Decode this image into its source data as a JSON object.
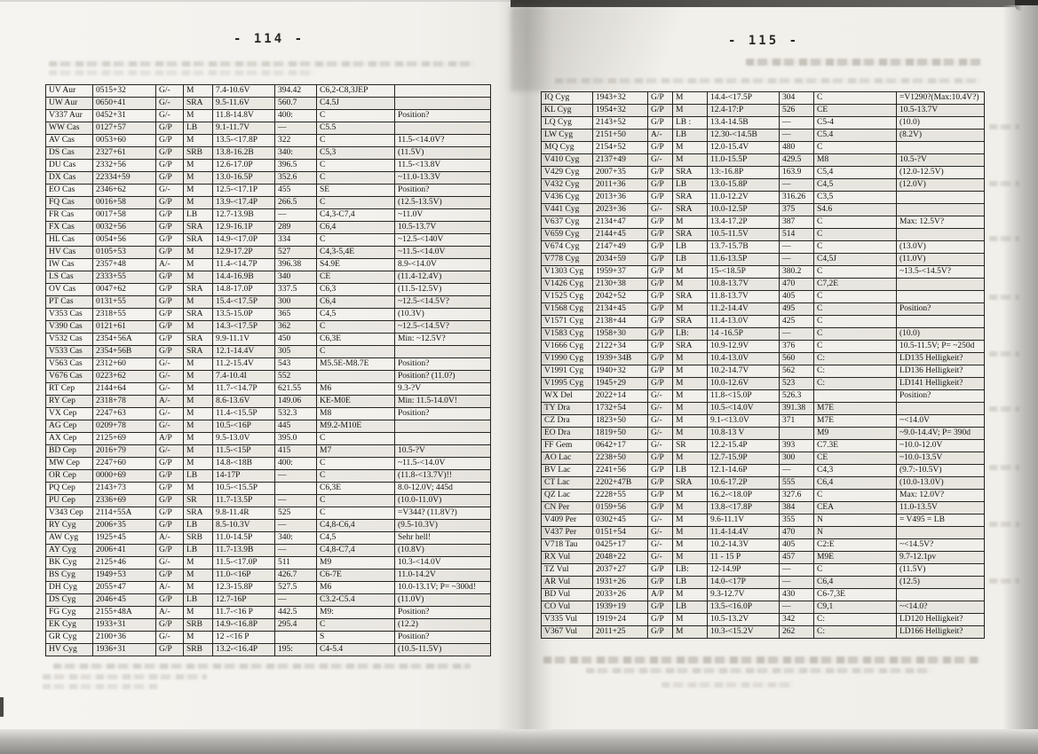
{
  "document": {
    "left_page": {
      "page_number": "- 114 -",
      "table": {
        "rows": [
          [
            "UV Aur",
            "0515+32",
            "G/-",
            "M",
            "7.4-10.6V",
            "394.42",
            "C6,2-C8,3JEP",
            ""
          ],
          [
            "UW Aur",
            "0650+41",
            "G/-",
            "SRA",
            "9.5-11.6V",
            "560.7",
            "C4.5J",
            ""
          ],
          [
            "V337 Aur",
            "0452+31",
            "G/-",
            "M",
            "11.8-14.8V",
            "400:",
            "C",
            "Position?"
          ],
          [
            "WW Cas",
            "0127+57",
            "G/P",
            "LB",
            "9.1-11.7V",
            "—",
            "C5.5",
            ""
          ],
          [
            "AV Cas",
            "0053+60",
            "G/P",
            "M",
            "13.5-<17.8P",
            "322",
            "C",
            "11.5-<14.0V?"
          ],
          [
            "DS Cas",
            "2327+61",
            "G/P",
            "SRB",
            "13.8-16.2B",
            "340:",
            "C5,3",
            "(11.5V)"
          ],
          [
            "DU Cas",
            "2332+56",
            "G/P",
            "M",
            "12.6-17.0P",
            "396.5",
            "C",
            "11.5-<13.8V"
          ],
          [
            "DX Cas",
            "22334+59",
            "G/P",
            "M",
            "13.0-16.5P",
            "352.6",
            "C",
            "~11.0-13.3V"
          ],
          [
            "EO Cas",
            "2346+62",
            "G/-",
            "M",
            "12.5-<17.1P",
            "455",
            "SE",
            "Position?"
          ],
          [
            "FQ Cas",
            "0016+58",
            "G/P",
            "M",
            "13.9-<17.4P",
            "266.5",
            "C",
            "(12.5-13.5V)"
          ],
          [
            "FR Cas",
            "0017+58",
            "G/P",
            "LB",
            "12.7-13.9B",
            "—",
            "C4,3-C7,4",
            "~11.0V"
          ],
          [
            "FX Cas",
            "0032+56",
            "G/P",
            "SRA",
            "12.9-16.1P",
            "289",
            "C6,4",
            "10.5-13.7V"
          ],
          [
            "HL Cas",
            "0054+56",
            "G/P",
            "SRA",
            "14.9-<17.0P",
            "334",
            "C",
            "~12.5-<140V"
          ],
          [
            "HV Cas",
            "0105+53",
            "G/P",
            "M",
            "12.9-17.2P",
            "527",
            "C4,3-5,4E",
            "~11.5-<14.0V"
          ],
          [
            "IW Cas",
            "2357+48",
            "A/-",
            "M",
            "11.4-<14.7P",
            "396.38",
            "S4.9E",
            "8.9-<14.0V"
          ],
          [
            "LS Cas",
            "2333+55",
            "G/P",
            "M",
            "14.4-16.9B",
            "340",
            "CE",
            "(11.4-12.4V)"
          ],
          [
            "OV Cas",
            "0047+62",
            "G/P",
            "SRA",
            "14.8-17.0P",
            "337.5",
            "C6,3",
            "(11.5-12.5V)"
          ],
          [
            "PT Cas",
            "0131+55",
            "G/P",
            "M",
            "15.4-<17.5P",
            "300",
            "C6,4",
            "~12.5-<14.5V?"
          ],
          [
            "V353 Cas",
            "2318+55",
            "G/P",
            "SRA",
            "13.5-15.0P",
            "365",
            "C4,5",
            "(10.3V)"
          ],
          [
            "V390 Cas",
            "0121+61",
            "G/P",
            "M",
            "14.3-<17.5P",
            "362",
            "C",
            "~12.5-<14.5V?"
          ],
          [
            "V532 Cas",
            "2354+56A",
            "G/P",
            "SRA",
            "9.9-11.1V",
            "450",
            "C6,3E",
            "Min: ~12.5V?"
          ],
          [
            "V533 Cas",
            "2354+56B",
            "G/P",
            "SRA",
            "12.1-14.4V",
            "305",
            "C",
            ""
          ],
          [
            "V563 Cas",
            "2312+60",
            "G/-",
            "M",
            "11.2-15.4V",
            "543",
            "M5.5E-M8.7E",
            "Position?"
          ],
          [
            "V676 Cas",
            "0223+62",
            "G/-",
            "M",
            "7.4-10.4I",
            "552",
            "",
            "Position? (11.0?)"
          ],
          [
            "RT Cep",
            "2144+64",
            "G/-",
            "M",
            "11.7-<14.7P",
            "621.55",
            "M6",
            "9.3-?V"
          ],
          [
            "RY Cep",
            "2318+78",
            "A/-",
            "M",
            "8.6-13.6V",
            "149.06",
            "KE-M0E",
            "Min: 11.5-14.0V!"
          ],
          [
            "VX Cep",
            "2247+63",
            "G/-",
            "M",
            "11.4-<15.5P",
            "532.3",
            "M8",
            "Position?"
          ],
          [
            "AG Cep",
            "0209+78",
            "G/-",
            "M",
            "10.5-<16P",
            "445",
            "M9.2-M10E",
            ""
          ],
          [
            "AX Cep",
            "2125+69",
            "A/P",
            "M",
            "9.5-13.0V",
            "395.0",
            "C",
            ""
          ],
          [
            "BD Cep",
            "2016+79",
            "G/-",
            "M",
            "11.5-<15P",
            "415",
            "M7",
            "10.5-?V"
          ],
          [
            "MW Cep",
            "2247+60",
            "G/P",
            "M",
            "14.8-<18B",
            "400:",
            "C",
            "~11.5-<14.0V"
          ],
          [
            "OR Cep",
            "0000+69",
            "G/P",
            "LB",
            "14-17P",
            "—",
            "C",
            "(11.8-<13.7V)!!"
          ],
          [
            "PQ Cep",
            "2143+73",
            "G/P",
            "M",
            "10.5-<15.5P",
            "",
            "C6,3E",
            "8.0-12.0V; 445d"
          ],
          [
            "PU Cep",
            "2336+69",
            "G/P",
            "SR",
            "11.7-13.5P",
            "—",
            "C",
            "(10.0-11.0V)"
          ],
          [
            "V343 Cep",
            "2114+55A",
            "G/P",
            "SRA",
            "9.8-11.4R",
            "525",
            "C",
            "=V344? (11.8V?)"
          ],
          [
            "RY Cyg",
            "2006+35",
            "G/P",
            "LB",
            "8.5-10.3V",
            "—",
            "C4,8-C6,4",
            "(9.5-10.3V)"
          ],
          [
            "AW Cyg",
            "1925+45",
            "A/-",
            "SRB",
            "11.0-14.5P",
            "340:",
            "C4,5",
            "Sehr hell!"
          ],
          [
            "AY Cyg",
            "2006+41",
            "G/P",
            "LB",
            "11.7-13.9B",
            "—",
            "C4,8-C7,4",
            "(10.8V)"
          ],
          [
            "BK Cyg",
            "2125+46",
            "G/-",
            "M",
            "11.5-<17.0P",
            "511",
            "M9",
            "10.3-<14.0V"
          ],
          [
            "BS Cyg",
            "1949+53",
            "G/P",
            "M",
            "11.0-<16P",
            "426.7",
            "C6-7E",
            "11.0-14.2V"
          ],
          [
            "DH Cyg",
            "2055+47",
            "A/-",
            "M",
            "12.3-15.8P",
            "527.5",
            "M6",
            "10.0-13.1V; P= ~300d!"
          ],
          [
            "DS Cyg",
            "2046+45",
            "G/P",
            "LB",
            "12.7-16P",
            "—",
            "C3.2-C5.4",
            "(11.0V)"
          ],
          [
            "FG Cyg",
            "2155+48A",
            "A/-",
            "M",
            "11.7-<16 P",
            "442.5",
            "M9:",
            "Position?"
          ],
          [
            "EK Cyg",
            "1933+31",
            "G/P",
            "SRB",
            "14.9-<16.8P",
            "295.4",
            "C",
            "(12.2)"
          ],
          [
            "GR Cyg",
            "2100+36",
            "G/-",
            "M",
            "12 -<16 P",
            "",
            "S",
            "Position?"
          ],
          [
            "HV Cyg",
            "1936+31",
            "G/P",
            "SRB",
            "13.2-<16.4P",
            "195:",
            "C4-5.4",
            "(10.5-11.5V)"
          ]
        ]
      }
    },
    "right_page": {
      "page_number": "- 115 -",
      "table": {
        "rows": [
          [
            "IQ Cyg",
            "1943+32",
            "G/P",
            "M",
            "14.4-<17.5P",
            "304",
            "C",
            "=V1290?(Max:10.4V?)"
          ],
          [
            "KL Cyg",
            "1954+32",
            "G/P",
            "M",
            "12.4-17:P",
            "526",
            "CE",
            "10.5-13.7V"
          ],
          [
            "LQ Cyg",
            "2143+52",
            "G/P",
            "LB :",
            "13.4-14.5B",
            "—",
            "C5-4",
            "(10.0)"
          ],
          [
            "LW Cyg",
            "2151+50",
            "A/-",
            "LB",
            "12.30-<14.5B",
            "—",
            "C5.4",
            "(8.2V)"
          ],
          [
            "MQ Cyg",
            "2154+52",
            "G/P",
            "M",
            "12.0-15.4V",
            "480",
            "C",
            ""
          ],
          [
            "V410 Cyg",
            "2137+49",
            "G/-",
            "M",
            "11.0-15.5P",
            "429.5",
            "M8",
            "10.5-?V"
          ],
          [
            "V429 Cyg",
            "2007+35",
            "G/P",
            "SRA",
            "13:-16.8P",
            "163.9",
            "C5,4",
            "(12.0-12.5V)"
          ],
          [
            "V432 Cyg",
            "2011+36",
            "G/P",
            "LB",
            "13.0-15.8P",
            "—",
            "C4,5",
            "(12.0V)"
          ],
          [
            "V436 Cyg",
            "2013+36",
            "G/P",
            "SRA",
            "11.0-12.2V",
            "316.26",
            "C3,5",
            ""
          ],
          [
            "V441 Cyg",
            "2023+36",
            "G/-",
            "SRA",
            "10.0-12.5P",
            "375",
            "S4.6",
            ""
          ],
          [
            "V637 Cyg",
            "2134+47",
            "G/P",
            "M",
            "13.4-17.2P",
            "387",
            "C",
            "Max: 12.5V?"
          ],
          [
            "V659 Cyg",
            "2144+45",
            "G/P",
            "SRA",
            "10.5-11.5V",
            "514",
            "C",
            ""
          ],
          [
            "V674 Cyg",
            "2147+49",
            "G/P",
            "LB",
            "13.7-15.7B",
            "—",
            "C",
            "(13.0V)"
          ],
          [
            "V778 Cyg",
            "2034+59",
            "G/P",
            "LB",
            "11.6-13.5P",
            "—",
            "C4,5J",
            "(11.0V)"
          ],
          [
            "V1303 Cyg",
            "1959+37",
            "G/P",
            "M",
            "15-<18.5P",
            "380.2",
            "C",
            "~13.5-<14.5V?"
          ],
          [
            "V1426 Cyg",
            "2130+38",
            "G/P",
            "M",
            "10.8-13.7V",
            "470",
            "C7,2E",
            ""
          ],
          [
            "V1525 Cyg",
            "2042+52",
            "G/P",
            "SRA",
            "11.8-13.7V",
            "405",
            "C",
            ""
          ],
          [
            "V1568 Cyg",
            "2134+45",
            "G/P",
            "M",
            "11.2-14.4V",
            "495",
            "C",
            "Position?"
          ],
          [
            "V1571 Cyg",
            "2138+44",
            "G/P",
            "SRA",
            "11.4-13.0V",
            "425",
            "C",
            ""
          ],
          [
            "V1583 Cyg",
            "1958+30",
            "G/P",
            "LB:",
            "14 -16.5P",
            "—",
            "C",
            "(10.0)"
          ],
          [
            "V1666 Cyg",
            "2122+34",
            "G/P",
            "SRA",
            "10.9-12.9V",
            "376",
            "C",
            "10.5-11.5V; P= ~250d"
          ],
          [
            "V1990 Cyg",
            "1939+34B",
            "G/P",
            "M",
            "10.4-13.0V",
            "560",
            "C:",
            "LD135  Helligkeit?"
          ],
          [
            "V1991 Cyg",
            "1940+32",
            "G/P",
            "M",
            "10.2-14.7V",
            "562",
            "C:",
            "LD136  Helligkeit?"
          ],
          [
            "V1995 Cyg",
            "1945+29",
            "G/P",
            "M",
            "10.0-12.6V",
            "523",
            "C:",
            "LD141  Helligkeit?"
          ],
          [
            "WX Del",
            "2022+14",
            "G/-",
            "M",
            "11.8-<15.0P",
            "526.3",
            "",
            "Position?"
          ],
          [
            "TY Dra",
            "1732+54",
            "G/-",
            "M",
            "10.5-<14.0V",
            "391.38",
            "M7E",
            ""
          ],
          [
            "CZ Dra",
            "1823+50",
            "G/-",
            "M",
            "9.1-<13.0V",
            "371",
            "M7E",
            "~<14.0V"
          ],
          [
            "EO Dra",
            "1819+50",
            "G/-",
            "M",
            "10.8-13 V",
            "",
            "M9",
            "~9.0-14.4V; P= 390d"
          ],
          [
            "FF Gem",
            "0642+17",
            "G/-",
            "SR",
            "12.2-15.4P",
            "393",
            "C7.3E",
            "~10.0-12.0V"
          ],
          [
            "AO Lac",
            "2238+50",
            "G/P",
            "M",
            "12.7-15.9P",
            "300",
            "CE",
            "~10.0-13.5V"
          ],
          [
            "BV Lac",
            "2241+56",
            "G/P",
            "LB",
            "12.1-14.6P",
            "—",
            "C4,3",
            "(9.7:-10.5V)"
          ],
          [
            "CT Lac",
            "2202+47B",
            "G/P",
            "SRA",
            "10.6-17.2P",
            "555",
            "C6,4",
            "(10.0-13.0V)"
          ],
          [
            "QZ Lac",
            "2228+55",
            "G/P",
            "M",
            "16.2-<18.0P",
            "327.6",
            "C",
            "Max: 12.0V?"
          ],
          [
            "CN Per",
            "0159+56",
            "G/P",
            "M",
            "13.8-<17.8P",
            "384",
            "CEA",
            "11.0-13.5V"
          ],
          [
            "V409 Per",
            "0302+45",
            "G/-",
            "M",
            "9.6-11.1V",
            "355",
            "N",
            "= V495 = LB"
          ],
          [
            "V437 Per",
            "0151+54",
            "G/-",
            "M",
            "11.4-14.4V",
            "470",
            "N",
            ""
          ],
          [
            "V718 Tau",
            "0425+17",
            "G/-",
            "M",
            "10.2-14.3V",
            "405",
            "C2:E",
            "~<14.5V?"
          ],
          [
            "RX Vul",
            "2048+22",
            "G/-",
            "M",
            "11 - 15 P",
            "457",
            "M9E",
            "9.7-12.1pv"
          ],
          [
            "TZ Vul",
            "2037+27",
            "G/P",
            "LB:",
            "12-14.9P",
            "—",
            "C",
            "(11.5V)"
          ],
          [
            "AR Vul",
            "1931+26",
            "G/P",
            "LB",
            "14.0-<17P",
            "—",
            "C6,4",
            "(12.5)"
          ],
          [
            "BD Vul",
            "2033+26",
            "A/P",
            "M",
            "9.3-12.7V",
            "430",
            "C6-7,3E",
            ""
          ],
          [
            "CO Vul",
            "1939+19",
            "G/P",
            "LB",
            "13.5-<16.0P",
            "—",
            "C9,1",
            "~<14.0?"
          ],
          [
            "V335 Vul",
            "1919+24",
            "G/P",
            "M",
            "10.5-13.2V",
            "342",
            "C:",
            "LD120  Helligkeit?"
          ],
          [
            "V367 Vul",
            "2011+25",
            "G/P",
            "M",
            "10.3-<15.2V",
            "262",
            "C:",
            "LD166  Helligkeit?"
          ]
        ]
      }
    }
  }
}
